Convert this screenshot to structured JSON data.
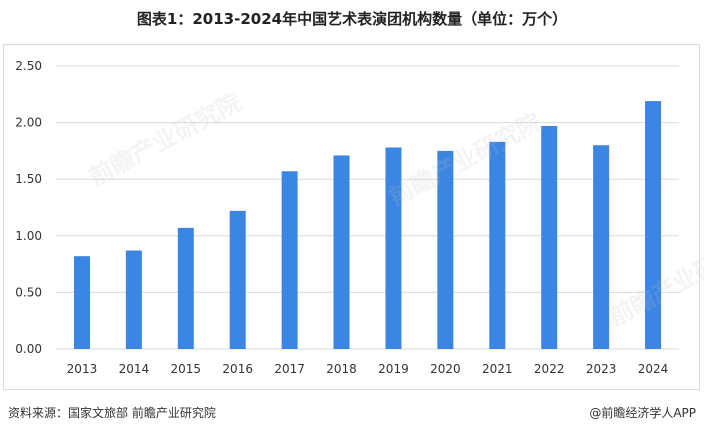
{
  "title": "图表1：2013-2024年中国艺术表演团机构数量（单位：万个）",
  "source": "资料来源：国家文旅部 前瞻产业研究院",
  "credit": "@前瞻经济学人APP",
  "watermark": "前瞻产业研究院",
  "colors": {
    "bar": "#3b86e3",
    "grid": "#d9d9d9",
    "axis_text": "#333333"
  },
  "chart_data": {
    "type": "bar",
    "title": "图表1：2013-2024年中国艺术表演团机构数量（单位：万个）",
    "xlabel": "",
    "ylabel": "",
    "categories": [
      "2013",
      "2014",
      "2015",
      "2016",
      "2017",
      "2018",
      "2019",
      "2020",
      "2021",
      "2022",
      "2023",
      "2024"
    ],
    "values": [
      0.82,
      0.87,
      1.07,
      1.22,
      1.57,
      1.71,
      1.78,
      1.75,
      1.83,
      1.97,
      1.8,
      2.19
    ],
    "yticks": [
      "0.00",
      "0.50",
      "1.00",
      "1.50",
      "2.00",
      "2.50"
    ],
    "ylim": [
      0,
      2.5
    ],
    "grid": true,
    "legend": "none"
  }
}
